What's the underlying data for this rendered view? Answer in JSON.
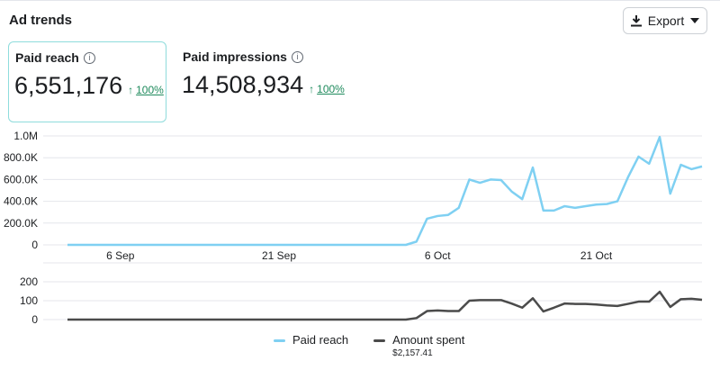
{
  "header": {
    "title": "Ad trends",
    "export_label": "Export",
    "export_icon": "download-icon",
    "caret_icon": "caret-down-icon"
  },
  "metrics": [
    {
      "label": "Paid reach",
      "value": "6,551,176",
      "delta_arrow": "↑",
      "delta": "100%",
      "selected": true
    },
    {
      "label": "Paid impressions",
      "value": "14,508,934",
      "delta_arrow": "↑",
      "delta": "100%",
      "selected": false
    }
  ],
  "colors": {
    "reach": "#7fd0f2",
    "amount": "#4b4b4b",
    "delta": "#1e8a5c",
    "selected_border": "#8fdcdc"
  },
  "chart_data": [
    {
      "type": "line",
      "x_ticks": [
        "6 Sep",
        "21 Sep",
        "6 Oct",
        "21 Oct"
      ],
      "y_ticks": [
        "0",
        "200.0K",
        "400.0K",
        "600.0K",
        "800.0K",
        "1.0M"
      ],
      "ylim": [
        0,
        1000000
      ],
      "grid": true,
      "series": [
        {
          "name": "Paid reach",
          "values": [
            0,
            0,
            0,
            0,
            0,
            0,
            0,
            0,
            0,
            0,
            0,
            0,
            0,
            0,
            0,
            0,
            0,
            0,
            0,
            0,
            0,
            0,
            0,
            0,
            0,
            0,
            0,
            0,
            0,
            0,
            0,
            0,
            0,
            30000,
            240000,
            265000,
            275000,
            340000,
            600000,
            570000,
            600000,
            595000,
            490000,
            420000,
            710000,
            315000,
            315000,
            355000,
            340000,
            355000,
            370000,
            375000,
            400000,
            620000,
            810000,
            745000,
            990000,
            470000,
            735000,
            695000,
            720000
          ]
        }
      ]
    },
    {
      "type": "line",
      "y_ticks": [
        "0",
        "100",
        "200"
      ],
      "ylim": [
        0,
        200
      ],
      "grid": true,
      "series": [
        {
          "name": "Amount spent",
          "total": "$2,157.41",
          "values": [
            0,
            0,
            0,
            0,
            0,
            0,
            0,
            0,
            0,
            0,
            0,
            0,
            0,
            0,
            0,
            0,
            0,
            0,
            0,
            0,
            0,
            0,
            0,
            0,
            0,
            0,
            0,
            0,
            0,
            0,
            0,
            0,
            0,
            8,
            45,
            48,
            45,
            45,
            100,
            103,
            103,
            103,
            85,
            63,
            113,
            43,
            63,
            85,
            83,
            83,
            80,
            75,
            72,
            83,
            95,
            95,
            147,
            67,
            108,
            110,
            105
          ]
        }
      ]
    }
  ],
  "legend": [
    {
      "label": "Paid reach"
    },
    {
      "label": "Amount spent",
      "sub": "$2,157.41"
    }
  ]
}
